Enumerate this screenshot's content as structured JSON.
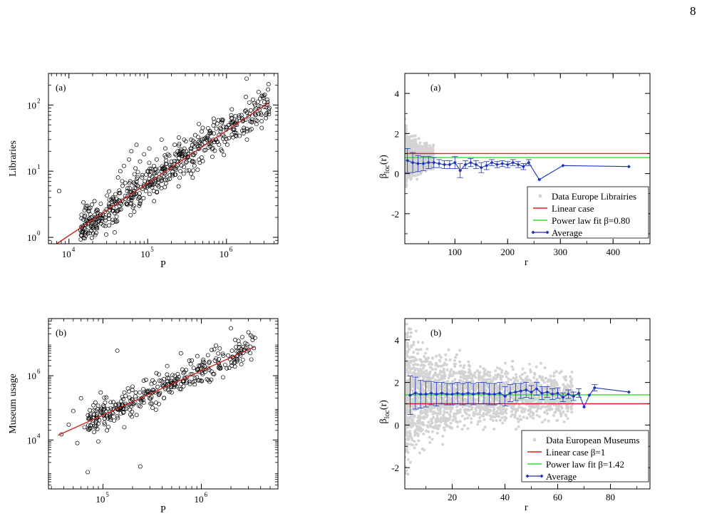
{
  "page": {
    "number": "8"
  },
  "panels": [
    {
      "id": "scatter-libraries",
      "panel_label": "(a)",
      "xlabel": "P",
      "ylabel": "Libraries",
      "xticks": [
        {
          "base": "10",
          "exp": "4",
          "value": 10000
        },
        {
          "base": "10",
          "exp": "5",
          "value": 100000
        },
        {
          "base": "10",
          "exp": "6",
          "value": 1000000
        }
      ],
      "yticks": [
        {
          "base": "10",
          "exp": "0",
          "value": 1
        },
        {
          "base": "10",
          "exp": "1",
          "value": 10
        },
        {
          "base": "10",
          "exp": "2",
          "value": 100
        }
      ]
    },
    {
      "id": "beta-libraries",
      "panel_label": "(a)",
      "xlabel": "r",
      "ylabel_main": "β",
      "ylabel_sub": "loc",
      "ylabel_tail": "(r)",
      "xticks": [
        "100",
        "200",
        "300",
        "400"
      ],
      "yticks": [
        "-2",
        "0",
        "2",
        "4"
      ],
      "legend": [
        "Data Europe Librairies",
        "Linear case",
        "Power law fit β=0.80",
        "Average"
      ]
    },
    {
      "id": "scatter-museums",
      "panel_label": "(b)",
      "xlabel": "P",
      "ylabel": "Museum usage",
      "xticks": [
        {
          "base": "10",
          "exp": "5",
          "value": 100000
        },
        {
          "base": "10",
          "exp": "6",
          "value": 1000000
        }
      ],
      "yticks": [
        {
          "base": "10",
          "exp": "4",
          "value": 10000
        },
        {
          "base": "10",
          "exp": "6",
          "value": 1000000
        }
      ]
    },
    {
      "id": "beta-museums",
      "panel_label": "(b)",
      "xlabel": "r",
      "ylabel_main": "β",
      "ylabel_sub": "loc",
      "ylabel_tail": "(r)",
      "xticks": [
        "20",
        "40",
        "60",
        "80"
      ],
      "yticks": [
        "-2",
        "0",
        "2",
        "4"
      ],
      "legend": [
        "Data European Museums",
        "Linear case β=1",
        "Power law fit β=1.42",
        "Average"
      ]
    }
  ],
  "colors": {
    "fit_line": "#cc2222",
    "linear_case": "#dd2222",
    "power_law": "#33dd33",
    "average": "#1a33bb",
    "data_cloud": "#d3d3d3",
    "marker": "#000000"
  },
  "chart_data": [
    {
      "type": "scatter",
      "title": "",
      "panel_label": "(a)",
      "xlabel": "P",
      "ylabel": "Libraries",
      "xscale": "log",
      "yscale": "log",
      "xlim": [
        5500,
        4500000
      ],
      "ylim": [
        0.8,
        300
      ],
      "grid": false,
      "series": [
        {
          "name": "",
          "marker": "open-circle",
          "x": [
            7500,
            17000,
            36000,
            42000,
            45000,
            48000,
            50000,
            55000,
            58000,
            60000,
            62000,
            65000,
            68000,
            70000,
            72000,
            75000,
            78000,
            80000,
            85000,
            90000,
            95000,
            100000,
            105000,
            110000,
            120000,
            130000,
            140000,
            150000,
            165000,
            180000,
            200000,
            220000,
            240000,
            260000,
            290000,
            320000,
            350000,
            400000,
            450000,
            500000,
            560000,
            620000,
            700000,
            800000,
            900000,
            1000000,
            1150000,
            1300000,
            1800000,
            2800000,
            3500000
          ],
          "y": [
            5,
            3,
            4,
            8,
            10,
            6,
            12,
            5,
            15,
            7,
            20,
            4,
            9,
            11,
            25,
            6,
            3,
            14,
            8,
            18,
            5,
            10,
            22,
            7,
            12,
            15,
            9,
            30,
            11,
            18,
            14,
            25,
            20,
            10,
            30,
            16,
            22,
            35,
            28,
            45,
            30,
            40,
            55,
            35,
            60,
            45,
            70,
            50,
            250,
            45,
            90
          ]
        }
      ],
      "fit": {
        "name": "",
        "type": "power_law",
        "x": [
          7000,
          3500000
        ],
        "y": [
          0.8,
          110
        ]
      }
    },
    {
      "type": "scatter",
      "title": "",
      "panel_label": "(a)",
      "xlabel": "r",
      "ylabel": "β_loc(r)",
      "xlim": [
        5,
        470
      ],
      "ylim": [
        -3.5,
        5
      ],
      "legend_position": "bottom-right",
      "series": [
        {
          "name": "Data Europe Librairies",
          "marker": "gray-dot",
          "x_range": [
            5,
            60
          ],
          "y_range": [
            -2,
            2.5
          ]
        },
        {
          "name": "Linear case",
          "line": "horizontal",
          "y": 1.0
        },
        {
          "name": "Power law fit β=0.80",
          "line": "horizontal",
          "y": 0.8
        },
        {
          "name": "Average",
          "marker": "diamond-line",
          "x": [
            10,
            20,
            30,
            40,
            50,
            60,
            70,
            80,
            90,
            100,
            110,
            120,
            130,
            140,
            150,
            160,
            170,
            180,
            190,
            200,
            210,
            220,
            230,
            240,
            260,
            305,
            430
          ],
          "y": [
            0.65,
            0.55,
            0.5,
            0.5,
            0.55,
            0.55,
            0.5,
            0.45,
            0.45,
            0.55,
            0.15,
            0.45,
            0.55,
            0.45,
            0.3,
            0.4,
            0.55,
            0.45,
            0.5,
            0.45,
            0.55,
            0.45,
            0.35,
            0.55,
            -0.3,
            0.4,
            0.35
          ],
          "err": [
            0.6,
            0.5,
            0.4,
            0.35,
            0.3,
            0.25,
            0.2,
            0.2,
            0.2,
            0.3,
            0.35,
            0.2,
            0.2,
            0.2,
            0.25,
            0.2,
            0.15,
            0.15,
            0.15,
            0.15,
            0.15,
            0.15,
            0.15,
            0.15,
            0,
            0,
            0
          ]
        }
      ]
    },
    {
      "type": "scatter",
      "title": "",
      "panel_label": "(b)",
      "xlabel": "P",
      "ylabel": "Museum usage",
      "xscale": "log",
      "yscale": "log",
      "xlim": [
        28000,
        6000000
      ],
      "ylim": [
        300,
        60000000
      ],
      "grid": false,
      "series": [
        {
          "name": "",
          "marker": "open-circle",
          "x": [
            38000,
            45000,
            50000,
            55000,
            60000,
            65000,
            70000,
            75000,
            80000,
            85000,
            90000,
            95000,
            100000,
            110000,
            120000,
            130000,
            140000,
            150000,
            165000,
            180000,
            200000,
            220000,
            240000,
            260000,
            290000,
            320000,
            350000,
            400000,
            450000,
            500000,
            560000,
            620000,
            700000,
            800000,
            900000,
            1000000,
            1200000,
            1500000,
            2000000,
            2500000,
            3500000
          ],
          "y": [
            15000,
            30000,
            80000,
            8000,
            200000,
            25000,
            1000,
            50000,
            120000,
            35000,
            9000,
            300000,
            70000,
            20000,
            150000,
            40000,
            6000000,
            90000,
            25000,
            400000,
            180000,
            60000,
            1500,
            700000,
            250000,
            100000,
            1200000,
            500000,
            2000000,
            300000,
            800000,
            5000000,
            1500000,
            3000000,
            900000,
            700000,
            2500000,
            1800000,
            30000000,
            5000000,
            15000000
          ]
        }
      ],
      "fit": {
        "name": "",
        "type": "power_law",
        "x": [
          35000,
          3500000
        ],
        "y": [
          14000,
          8000000
        ]
      }
    },
    {
      "type": "scatter",
      "title": "",
      "panel_label": "(b)",
      "xlabel": "r",
      "ylabel": "β_loc(r)",
      "xlim": [
        2,
        95
      ],
      "ylim": [
        -3,
        5
      ],
      "legend_position": "bottom-right",
      "series": [
        {
          "name": "Data European Museums",
          "marker": "gray-dot",
          "x_range": [
            2,
            60
          ],
          "y_range": [
            -3,
            5
          ]
        },
        {
          "name": "Linear case β=1",
          "line": "horizontal",
          "y": 1.0
        },
        {
          "name": "Power law fit β=1.42",
          "line": "horizontal",
          "y": 1.42
        },
        {
          "name": "Average",
          "marker": "diamond-line",
          "x": [
            4,
            6,
            8,
            10,
            12,
            14,
            16,
            18,
            20,
            22,
            24,
            26,
            28,
            30,
            32,
            34,
            36,
            38,
            40,
            42,
            44,
            46,
            48,
            50,
            52,
            54,
            56,
            58,
            60,
            62,
            64,
            66,
            68,
            70,
            72,
            74,
            87
          ],
          "y": [
            1.4,
            1.5,
            1.45,
            1.45,
            1.5,
            1.45,
            1.5,
            1.45,
            1.45,
            1.5,
            1.45,
            1.5,
            1.45,
            1.5,
            1.5,
            1.45,
            1.45,
            1.5,
            1.35,
            1.5,
            1.55,
            1.6,
            1.65,
            1.55,
            1.7,
            1.5,
            1.55,
            1.45,
            1.5,
            1.3,
            1.45,
            1.35,
            1.5,
            0.85,
            1.4,
            1.75,
            1.55
          ],
          "err": [
            0.9,
            0.75,
            0.65,
            0.6,
            0.55,
            0.55,
            0.5,
            0.5,
            0.5,
            0.5,
            0.5,
            0.5,
            0.5,
            0.5,
            0.5,
            0.5,
            0.5,
            0.5,
            0.45,
            0.4,
            0.4,
            0.35,
            0.35,
            0.3,
            0.3,
            0.3,
            0.25,
            0.25,
            0.25,
            0.2,
            0.2,
            0.2,
            0.2,
            0,
            0,
            0.15,
            0
          ]
        }
      ]
    }
  ]
}
